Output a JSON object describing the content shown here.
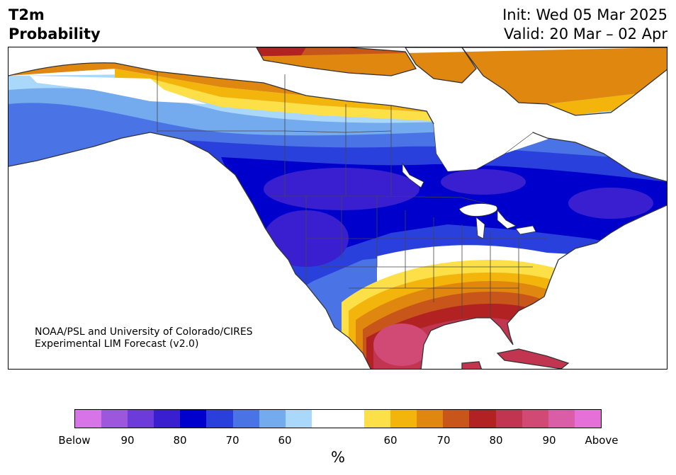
{
  "title": {
    "left_line1": "T2m",
    "left_line2": "Probability",
    "right_line1": "Init: Wed 05 Mar 2025",
    "right_line2": "Valid: 20 Mar – 02 Apr"
  },
  "credit": {
    "line1": "NOAA/PSL and University of Colorado/CIRES",
    "line2": "Experimental LIM Forecast (v2.0)"
  },
  "colorbar": {
    "unit": "%",
    "colors": [
      "#d674e8",
      "#9c57dc",
      "#6d3bd9",
      "#3a1fd0",
      "#0000cc",
      "#2a40dd",
      "#4a74e6",
      "#74aaee",
      "#aad8fb",
      "#ffffff",
      "#ffffff",
      "#fde047",
      "#f3b50c",
      "#e0870f",
      "#c8561a",
      "#b22222",
      "#c13550",
      "#d14a75",
      "#da5ea7",
      "#e571d8"
    ],
    "tick_labels": [
      "Below",
      "90",
      "80",
      "70",
      "60",
      "60",
      "70",
      "80",
      "90",
      "Above"
    ]
  },
  "map": {
    "region": "North America",
    "palette": {
      "ocean": "#ffffff",
      "land_base": "#ffffff",
      "border": "#333333"
    }
  }
}
